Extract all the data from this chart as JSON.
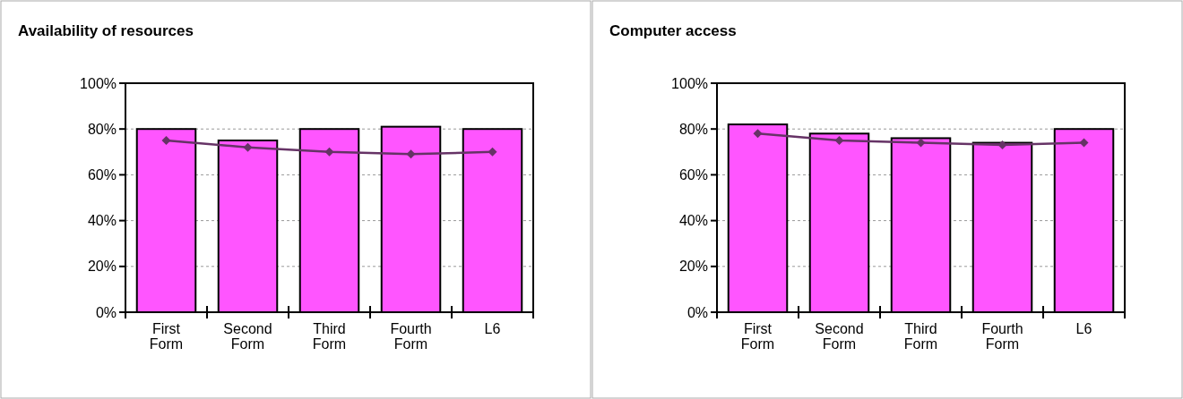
{
  "chart_data": [
    {
      "type": "bar",
      "title": "Availability of resources",
      "categories": [
        "First\nForm",
        "Second\nForm",
        "Third\nForm",
        "Fourth\nForm",
        "L6"
      ],
      "series": [
        {
          "color": "#ff55ff",
          "values": [
            80,
            75,
            80,
            81,
            80
          ]
        },
        {
          "type": "line",
          "color": "#663366",
          "marker": "diamond",
          "values": [
            75,
            72,
            70,
            69,
            70
          ]
        }
      ],
      "ylim": [
        0,
        100
      ],
      "yticks": [
        {
          "value": 0,
          "label": "0%"
        },
        {
          "value": 20,
          "label": "20%"
        },
        {
          "value": 40,
          "label": "40%"
        },
        {
          "value": 60,
          "label": "60%"
        },
        {
          "value": 80,
          "label": "80%"
        },
        {
          "value": 100,
          "label": "100%"
        }
      ],
      "grid": "y"
    },
    {
      "type": "bar",
      "title": "Computer access",
      "categories": [
        "First\nForm",
        "Second\nForm",
        "Third\nForm",
        "Fourth\nForm",
        "L6"
      ],
      "series": [
        {
          "color": "#ff55ff",
          "values": [
            82,
            78,
            76,
            74,
            80
          ]
        },
        {
          "type": "line",
          "color": "#663366",
          "marker": "diamond",
          "values": [
            78,
            75,
            74,
            73,
            74
          ]
        }
      ],
      "ylim": [
        0,
        100
      ],
      "yticks": [
        {
          "value": 0,
          "label": "0%"
        },
        {
          "value": 20,
          "label": "20%"
        },
        {
          "value": 40,
          "label": "40%"
        },
        {
          "value": 60,
          "label": "60%"
        },
        {
          "value": 80,
          "label": "80%"
        },
        {
          "value": 100,
          "label": "100%"
        }
      ],
      "grid": "y"
    }
  ]
}
